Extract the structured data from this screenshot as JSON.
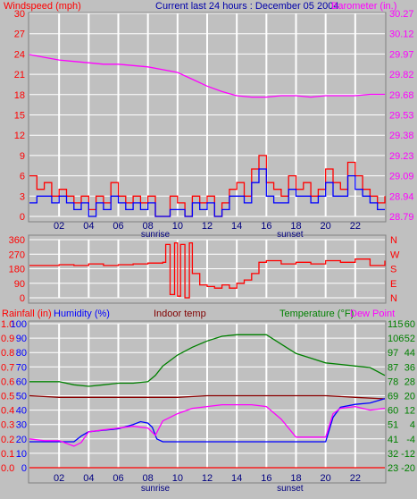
{
  "header": {
    "title": "Current last 24 hours : December 05 2004",
    "left_label": "Windspeed (mph)",
    "right_label": "Barometer (in.)"
  },
  "colors": {
    "background": "#c0c0c0",
    "plot_bg": "#c0c0c0",
    "grid": "#ffffff",
    "red": "#ff0000",
    "blue": "#0000ff",
    "magenta": "#ff00ff",
    "green": "#008000",
    "darkred": "#8b0000",
    "axis_text_red": "#ff0000",
    "axis_text_magenta": "#ff00ff",
    "axis_text_blue": "#0000ff",
    "axis_text_green": "#008000",
    "axis_text_darkred": "#800000",
    "title_blue": "#0000aa"
  },
  "time_axis": {
    "ticks": [
      "02",
      "04",
      "06",
      "08",
      "10",
      "12",
      "14",
      "16",
      "18",
      "20",
      "22"
    ],
    "sunrise_label": "sunrise",
    "sunset_label": "sunset",
    "sunrise_hour": 8.5,
    "sunset_hour": 17.6
  },
  "chart_data": [
    {
      "id": "wind-baro",
      "type": "line",
      "x_range_hours": [
        0,
        24
      ],
      "left_axis": {
        "label": "Windspeed (mph)",
        "ticks": [
          "0",
          "3",
          "6",
          "9",
          "12",
          "15",
          "18",
          "21",
          "24",
          "27",
          "30"
        ],
        "ylim": [
          0,
          30
        ]
      },
      "right_axis": {
        "label": "Barometer (in.)",
        "ticks": [
          "28.79",
          "28.94",
          "29.09",
          "29.23",
          "29.38",
          "29.53",
          "29.68",
          "29.82",
          "29.97",
          "30.12",
          "30.27"
        ],
        "ylim": [
          28.79,
          30.27
        ]
      },
      "series": [
        {
          "axis": "right",
          "color": "#ff00ff",
          "x": [
            0,
            1,
            2,
            3,
            4,
            5,
            6,
            7,
            8,
            9,
            10,
            11,
            12,
            13,
            14,
            15,
            16,
            17,
            18,
            19,
            20,
            21,
            22,
            23,
            24
          ],
          "values": [
            29.97,
            29.95,
            29.93,
            29.92,
            29.91,
            29.9,
            29.9,
            29.89,
            29.88,
            29.86,
            29.84,
            29.79,
            29.74,
            29.7,
            29.67,
            29.66,
            29.66,
            29.67,
            29.67,
            29.66,
            29.67,
            29.67,
            29.67,
            29.68,
            29.68
          ]
        },
        {
          "axis": "left",
          "color": "#ff0000",
          "x": [
            0,
            0.5,
            1,
            1.5,
            2,
            2.5,
            3,
            3.5,
            4,
            4.5,
            5,
            5.5,
            6,
            6.5,
            7,
            7.5,
            8,
            8.5,
            9,
            9.5,
            10,
            10.5,
            11,
            11.5,
            12,
            12.5,
            13,
            13.5,
            14,
            14.5,
            15,
            15.5,
            16,
            16.5,
            17,
            17.5,
            18,
            18.5,
            19,
            19.5,
            20,
            20.5,
            21,
            21.5,
            22,
            22.5,
            23,
            23.5,
            24
          ],
          "values": [
            6,
            4,
            5,
            3,
            4,
            3,
            2,
            3,
            1,
            3,
            2,
            5,
            3,
            2,
            3,
            2,
            3,
            0,
            0,
            3,
            2,
            0,
            3,
            2,
            3,
            0,
            2,
            4,
            5,
            3,
            7,
            9,
            5,
            4,
            3,
            6,
            4,
            5,
            3,
            4,
            7,
            5,
            4,
            8,
            6,
            4,
            3,
            2,
            3
          ]
        },
        {
          "axis": "left",
          "color": "#0000ff",
          "x": [
            0,
            0.5,
            1,
            1.5,
            2,
            2.5,
            3,
            3.5,
            4,
            4.5,
            5,
            5.5,
            6,
            6.5,
            7,
            7.5,
            8,
            8.5,
            9,
            9.5,
            10,
            10.5,
            11,
            11.5,
            12,
            12.5,
            13,
            13.5,
            14,
            14.5,
            15,
            15.5,
            16,
            16.5,
            17,
            17.5,
            18,
            18.5,
            19,
            19.5,
            20,
            20.5,
            21,
            21.5,
            22,
            22.5,
            23,
            23.5,
            24
          ],
          "values": [
            2,
            3,
            3,
            2,
            3,
            2,
            1,
            2,
            0,
            2,
            1,
            3,
            2,
            1,
            2,
            1,
            2,
            0,
            0,
            1,
            1,
            0,
            2,
            1,
            2,
            0,
            1,
            3,
            3,
            2,
            5,
            7,
            3,
            2,
            2,
            4,
            3,
            3,
            2,
            3,
            5,
            3,
            3,
            6,
            4,
            3,
            2,
            1,
            1
          ]
        }
      ]
    },
    {
      "id": "wind-direction",
      "type": "line",
      "x_range_hours": [
        0,
        24
      ],
      "left_axis": {
        "ticks": [
          "0",
          "90",
          "180",
          "270",
          "360"
        ],
        "ylim": [
          0,
          360
        ]
      },
      "right_axis": {
        "ticks": [
          "N",
          "E",
          "S",
          "W",
          "N"
        ]
      },
      "series": [
        {
          "color": "#ff0000",
          "x": [
            0,
            1,
            2,
            3,
            4,
            5,
            6,
            7,
            8,
            9,
            9.2,
            9.5,
            9.8,
            10,
            10.2,
            10.5,
            10.8,
            11,
            11.5,
            12,
            12.5,
            13,
            13.5,
            14,
            14.5,
            15,
            15.5,
            16,
            17,
            18,
            19,
            20,
            21,
            22,
            23,
            24
          ],
          "values": [
            200,
            200,
            205,
            200,
            210,
            200,
            205,
            210,
            215,
            220,
            330,
            20,
            340,
            10,
            330,
            0,
            340,
            150,
            80,
            70,
            60,
            80,
            60,
            90,
            110,
            150,
            220,
            230,
            210,
            220,
            210,
            230,
            220,
            240,
            200,
            230
          ]
        }
      ]
    },
    {
      "id": "rain-humidity-temp",
      "type": "line",
      "x_range_hours": [
        0,
        24
      ],
      "left_axis_rain": {
        "label": "Rainfall (in)",
        "ticks": [
          "0.0",
          "0.1",
          "0.2",
          "0.3",
          "0.4",
          "0.5",
          "0.6",
          "0.7",
          "0.8",
          "0.9",
          "1.0"
        ],
        "ylim": [
          0,
          1.0
        ]
      },
      "left_axis_humidity": {
        "label": "Humidity (%)",
        "ticks": [
          "0",
          "10",
          "20",
          "30",
          "40",
          "50",
          "60",
          "70",
          "80",
          "90",
          "100"
        ],
        "ylim": [
          0,
          100
        ]
      },
      "right_axis_temp": {
        "label": "Temperature (°F)",
        "ticks": [
          "23",
          "32",
          "41",
          "51",
          "60",
          "69",
          "78",
          "87",
          "97",
          "106",
          "115"
        ],
        "ylim": [
          23,
          115
        ]
      },
      "right_axis_dew": {
        "label": "Dew Point",
        "ticks": [
          "-20",
          "-12",
          "-4",
          "4",
          "12",
          "20",
          "28",
          "36",
          "44",
          "52",
          "60"
        ]
      },
      "indoor_label": "Indoor temp",
      "series": [
        {
          "name": "Temperature (°F)",
          "color": "#008000",
          "scale": "temp",
          "x": [
            0,
            1,
            2,
            3,
            4,
            5,
            6,
            7,
            8,
            8.5,
            9,
            10,
            11,
            12,
            13,
            14,
            15,
            16,
            17,
            18,
            19,
            20,
            21,
            22,
            23,
            24
          ],
          "values": [
            78,
            78,
            78,
            76,
            75,
            76,
            77,
            77,
            78,
            82,
            88,
            95,
            100,
            104,
            107,
            108,
            108,
            108,
            102,
            96,
            93,
            90,
            89,
            88,
            87,
            82
          ]
        },
        {
          "name": "Indoor temp",
          "color": "#8b0000",
          "scale": "temp",
          "x": [
            0,
            2,
            4,
            6,
            8,
            10,
            12,
            14,
            16,
            18,
            20,
            22,
            24
          ],
          "values": [
            69,
            68,
            68,
            68,
            68,
            68,
            69,
            69,
            69,
            69,
            69,
            68,
            67
          ]
        },
        {
          "name": "Humidity (%)",
          "color": "#0000ff",
          "scale": "humidity",
          "x": [
            0,
            1,
            2,
            3,
            3.5,
            4,
            5,
            6,
            7,
            7.5,
            8,
            8.3,
            8.6,
            9,
            10,
            12,
            14,
            16,
            18,
            19,
            19.5,
            20,
            20.5,
            21,
            22,
            23,
            24
          ],
          "values": [
            18,
            18,
            18,
            18,
            22,
            25,
            26,
            27,
            30,
            32,
            31,
            28,
            20,
            18,
            18,
            18,
            18,
            18,
            18,
            18,
            18,
            18,
            35,
            42,
            44,
            45,
            48
          ]
        },
        {
          "name": "Dew Point",
          "color": "#ff00ff",
          "scale": "dew",
          "x": [
            0,
            1,
            2,
            3,
            3.5,
            4,
            5,
            6,
            7,
            8,
            8.5,
            9,
            10,
            11,
            12,
            13,
            14,
            15,
            16,
            17,
            18,
            19,
            19.5,
            20,
            20.5,
            21,
            22,
            23,
            24
          ],
          "values": [
            -4,
            -5,
            -5,
            -8,
            -6,
            0,
            1,
            2,
            3,
            2,
            -2,
            6,
            10,
            13,
            14,
            15,
            15,
            15,
            14,
            7,
            -3,
            -3,
            -3,
            -3,
            10,
            13,
            14,
            12,
            13
          ]
        },
        {
          "name": "Rainfall (in)",
          "color": "#ff0000",
          "scale": "rain",
          "x": [
            0,
            24
          ],
          "values": [
            0.0,
            0.0
          ]
        }
      ]
    }
  ]
}
